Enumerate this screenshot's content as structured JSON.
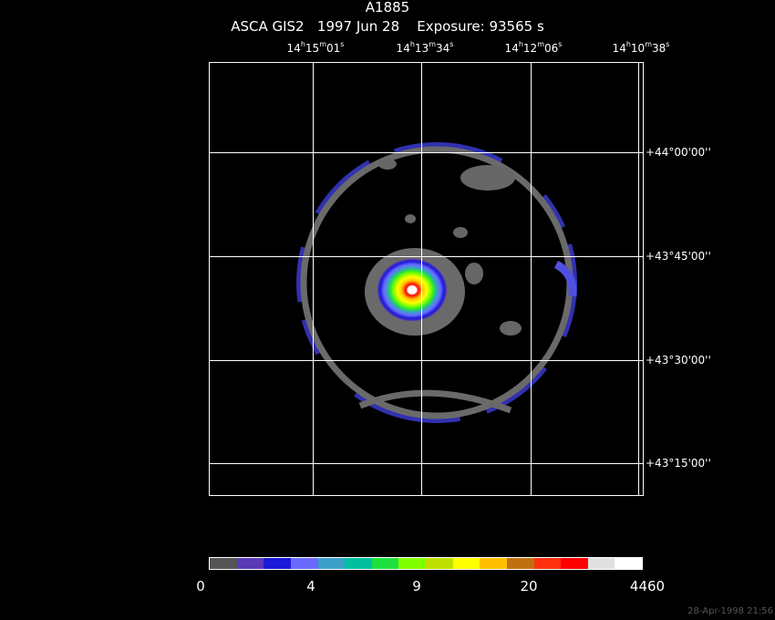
{
  "header": {
    "object": "A1885",
    "subtitle": "ASCA GIS2   1997 Jun 28    Exposure: 93565 s"
  },
  "ra_labels": [
    {
      "h": "14",
      "m": "15",
      "s": "01"
    },
    {
      "h": "14",
      "m": "13",
      "s": "34"
    },
    {
      "h": "14",
      "m": "12",
      "s": "06"
    },
    {
      "h": "14",
      "m": "10",
      "s": "38"
    }
  ],
  "dec_labels": [
    "+44°00'00''",
    "+43°45'00''",
    "+43°30'00''",
    "+43°15'00''"
  ],
  "colorbar": {
    "colors": [
      "#555555",
      "#5a3ab5",
      "#1a1ad8",
      "#6a6aff",
      "#3aa0c8",
      "#00c0a0",
      "#20e040",
      "#80ff00",
      "#c0e000",
      "#ffff00",
      "#ffc000",
      "#c07010",
      "#ff3010",
      "#ff0000",
      "#e0e0e0",
      "#ffffff"
    ],
    "tick_labels": [
      "0",
      "4",
      "9",
      "20",
      "4460"
    ]
  },
  "timestamp": "28-Apr-1998 21:56"
}
